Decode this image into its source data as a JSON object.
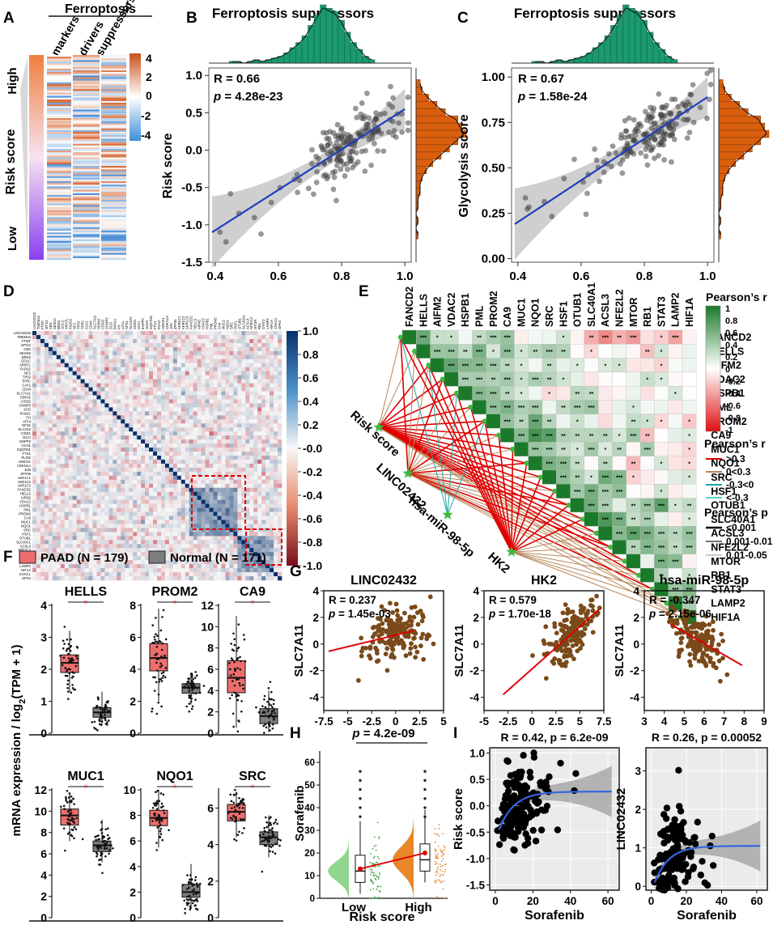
{
  "panel_letters": {
    "a": "A",
    "b": "B",
    "c": "C",
    "d": "D",
    "e": "E",
    "f": "F",
    "g": "G",
    "h": "H",
    "i": "I"
  },
  "colors": {
    "green": "#1a9a6e",
    "orange": "#d95f0e",
    "blue": "#1f3fbf",
    "red": "#e00000",
    "tan": "#b8865a",
    "teal": "#22a4a4",
    "box_red": "#ee6e6e",
    "box_gray": "#7d7d7d",
    "brown": "#7a4a1a"
  },
  "panel_a": {
    "title": "Ferroptosis",
    "columns": [
      "markers",
      "drivers",
      "suppressors"
    ],
    "ylabel": "Risk score",
    "high": "High",
    "low": "Low",
    "scale_ticks": [
      "4",
      "2",
      "0",
      "-2",
      "-4"
    ]
  },
  "chart_data": [
    {
      "id": "B",
      "type": "scatter",
      "title": "Ferroptosis suppressors",
      "ylabel": "Risk score",
      "xlabel": "",
      "xlim": [
        0.38,
        1.02
      ],
      "ylim": [
        -1.5,
        1.1
      ],
      "xticks": [
        "0.4",
        "0.6",
        "0.8",
        "1.0"
      ],
      "yticks": [
        "1.0",
        "0.5",
        "0.0",
        "-0.5",
        "-1.0",
        "-1.5"
      ],
      "annotation_r": "R = 0.66",
      "annotation_p_label": "p",
      "annotation_p": " = 4.28e-23",
      "fit": {
        "x0": 0.39,
        "y0": -1.1,
        "x1": 1.0,
        "y1": 0.55
      }
    },
    {
      "id": "C",
      "type": "scatter",
      "title": "Ferroptosis suppressors",
      "ylabel": "Glycolysis score",
      "xlabel": "",
      "xlim": [
        0.38,
        1.02
      ],
      "ylim": [
        -0.02,
        1.05
      ],
      "xticks": [
        "0.4",
        "0.6",
        "0.8",
        "1.0"
      ],
      "yticks": [
        "1.00",
        "0.75",
        "0.50",
        "0.25",
        "0.00"
      ],
      "annotation_r": "R = 0.67",
      "annotation_p_label": "p",
      "annotation_p": " = 1.58e-24",
      "fit": {
        "x0": 0.39,
        "y0": 0.19,
        "x1": 1.0,
        "y1": 0.89
      }
    },
    {
      "id": "D",
      "type": "heatmap",
      "colorbar_ticks": [
        "1.0",
        "0.8",
        "0.6",
        "0.4",
        "0.2",
        "-0.0",
        "-0.2",
        "-0.4",
        "-0.6",
        "-0.8",
        "-1.0"
      ],
      "genes": [
        "LINC02432",
        "TMEM44",
        "FTMT",
        "MT1G",
        "CBS",
        "SESN2",
        "BRD4",
        "GOLC",
        "ARNTL",
        "FADS2",
        "NF2",
        "TP53",
        "TFRC",
        "CAV1",
        "CD44",
        "SLC7A11",
        "HSPA5",
        "CISD2",
        "CHMP5",
        "SCD",
        "PANX1",
        "FH",
        "ATF4",
        "NFS1",
        "SLC3A2",
        "CISD1",
        "ISCU",
        "ENPP2",
        "GCH1",
        "SQSTM1",
        "FTH1",
        "PLIN2",
        "HMOX1",
        "CDKN1A",
        "JUN",
        "ZFP36",
        "AKR1C1",
        "AKR1C2",
        "AKR1C3",
        "FANCD2",
        "HELLS",
        "AIFM2",
        "VDAC2",
        "HSPB1",
        "PML",
        "PROM2",
        "CA9",
        "MUC1",
        "NQO1",
        "SRC",
        "HSF1",
        "OTUB1",
        "SLC40A1",
        "ACSL3",
        "NFE2L2",
        "MTOR",
        "RB1",
        "STAT3",
        "LAMP2",
        "HIF1A",
        "CHAC1",
        "GPX4"
      ]
    },
    {
      "id": "G1",
      "type": "scatter",
      "title": "LINC02432",
      "ylabel": "SLC7A11",
      "xlim": [
        -7.5,
        5
      ],
      "ylim": [
        -5,
        4
      ],
      "xticks": [
        "-7.5",
        "-5",
        "-2.5",
        "0",
        "2.5",
        "5"
      ],
      "yticks": [
        "4",
        "2",
        "0",
        "-2",
        "-4"
      ],
      "annotation_r": "R = 0.237",
      "annotation_p_label": "p",
      "annotation_p": " = 1.45e-03",
      "fit": {
        "x0": -7.0,
        "y0": -0.55,
        "x1": 1.9,
        "y1": 1.0
      }
    },
    {
      "id": "G2",
      "type": "scatter",
      "title": "HK2",
      "ylabel": "SLC7A11",
      "xlim": [
        -5,
        7.5
      ],
      "ylim": [
        -5,
        4
      ],
      "xticks": [
        "-5",
        "-2.5",
        "0",
        "2.5",
        "5",
        "7.5"
      ],
      "yticks": [
        "4",
        "2",
        "0",
        "-2",
        "-4"
      ],
      "annotation_r": "R = 0.579",
      "annotation_p_label": "p",
      "annotation_p": " = 1.70e-18",
      "fit": {
        "x0": -3.0,
        "y0": -3.8,
        "x1": 7.0,
        "y1": 2.6
      }
    },
    {
      "id": "G3",
      "type": "scatter",
      "title": "hsa-miR-98-5p",
      "ylabel": "SLC7A11",
      "xlim": [
        3,
        9
      ],
      "ylim": [
        -5,
        4
      ],
      "xticks": [
        "3",
        "4",
        "5",
        "6",
        "7",
        "8",
        "9"
      ],
      "yticks": [
        "4",
        "2",
        "0",
        "-2",
        "-4"
      ],
      "annotation_r": "R = -0.347",
      "annotation_p_label": "p",
      "annotation_p": " = 2.15e-06",
      "fit": {
        "x0": 4.3,
        "y0": 1.5,
        "x1": 7.9,
        "y1": -1.6
      }
    },
    {
      "id": "H",
      "type": "violin",
      "ylabel": "Sorafenib",
      "xlabel": "Risk score",
      "categories": [
        "Low",
        "High"
      ],
      "ylim": [
        0,
        65
      ],
      "yticks": [
        "60",
        "50",
        "40",
        "30",
        "20",
        "10",
        "0"
      ],
      "medians": [
        12,
        17
      ],
      "means": [
        13,
        20
      ],
      "annotation_p_label": "p",
      "annotation_p": " = 4.2e-09"
    },
    {
      "id": "I1",
      "type": "scatter",
      "title": "R = 0.42, p = 6.2e-09",
      "ylabel": "Risk score",
      "xlabel": "Sorafenib",
      "xlim": [
        -3,
        66
      ],
      "ylim": [
        -1.6,
        1.1
      ],
      "xticks": [
        "0",
        "20",
        "40",
        "60"
      ],
      "yticks": [
        "1.0",
        "0.5",
        "0.0",
        "-0.5",
        "-1.0",
        "-1.5"
      ],
      "fit": {
        "x0": 2,
        "y0": -0.45,
        "x1": 62,
        "y1": 0.27
      }
    },
    {
      "id": "I2",
      "type": "scatter",
      "title": "R = 0.26, p = 0.00052",
      "ylabel": "LINC02432",
      "xlabel": "Sorafenib",
      "xlim": [
        -3,
        66
      ],
      "ylim": [
        -0.1,
        3.6
      ],
      "xticks": [
        "0",
        "20",
        "40",
        "60"
      ],
      "yticks": [
        "3",
        "2",
        "1",
        "0"
      ],
      "fit": {
        "x0": 2,
        "y0": 0.1,
        "x1": 62,
        "y1": 1.05
      }
    },
    {
      "id": "F",
      "type": "box",
      "legend": [
        "PAAD (N = 179)",
        "Normal (N = 171)"
      ],
      "ylabel": "mRNA expression / log",
      "ylabel_sub": "2",
      "ylabel_tail": "(TPM + 1)",
      "genes": [
        {
          "name": "HELLS",
          "ylim": [
            0,
            4
          ],
          "yticks": [
            "4",
            "3",
            "2",
            "1",
            "0"
          ],
          "paad": {
            "q1": 1.9,
            "med": 2.2,
            "q3": 2.45,
            "lo": 1.3,
            "hi": 3.2
          },
          "norm": {
            "q1": 0.5,
            "med": 0.65,
            "q3": 0.8,
            "lo": 0.25,
            "hi": 1.3
          }
        },
        {
          "name": "PROM2",
          "ylim": [
            0,
            8
          ],
          "yticks": [
            "8",
            "6",
            "4",
            "2",
            "0"
          ],
          "paad": {
            "q1": 3.9,
            "med": 4.7,
            "q3": 5.6,
            "lo": 2.0,
            "hi": 7.8
          },
          "norm": {
            "q1": 2.5,
            "med": 2.85,
            "q3": 3.1,
            "lo": 1.8,
            "hi": 3.8
          }
        },
        {
          "name": "CA9",
          "ylim": [
            0,
            12
          ],
          "yticks": [
            "12",
            "10",
            "8",
            "6",
            "4",
            "2",
            "0"
          ],
          "paad": {
            "q1": 3.8,
            "med": 5.2,
            "q3": 6.8,
            "lo": 0.5,
            "hi": 11
          },
          "norm": {
            "q1": 0.9,
            "med": 1.6,
            "q3": 2.3,
            "lo": 0.1,
            "hi": 4.0
          }
        },
        {
          "name": "MUC1",
          "ylim": [
            0,
            12
          ],
          "yticks": [
            "12",
            "10",
            "8",
            "6",
            "4",
            "2",
            "0"
          ],
          "paad": {
            "q1": 8.7,
            "med": 9.6,
            "q3": 10.2,
            "lo": 7.2,
            "hi": 11.7
          },
          "norm": {
            "q1": 6.2,
            "med": 6.8,
            "q3": 7.2,
            "lo": 5.2,
            "hi": 9.2
          }
        },
        {
          "name": "NQO1",
          "ylim": [
            0,
            10
          ],
          "yticks": [
            "10",
            "8",
            "6",
            "4",
            "2",
            "0"
          ],
          "paad": {
            "q1": 7.2,
            "med": 7.8,
            "q3": 8.4,
            "lo": 5.5,
            "hi": 10
          },
          "norm": {
            "q1": 1.6,
            "med": 2.0,
            "q3": 2.6,
            "lo": 0.8,
            "hi": 4.2
          }
        },
        {
          "name": "SRC",
          "ylim": [
            0,
            7
          ],
          "yticks": [
            "6",
            "4",
            "2",
            "0"
          ],
          "paad": {
            "q1": 5.3,
            "med": 5.8,
            "q3": 6.2,
            "lo": 4.4,
            "hi": 6.9
          },
          "norm": {
            "q1": 4.0,
            "med": 4.4,
            "q3": 4.7,
            "lo": 3.3,
            "hi": 5.6
          }
        }
      ]
    },
    {
      "id": "E",
      "type": "correlation-network",
      "genes": [
        "FANCD2",
        "HELLS",
        "AIFM2",
        "VDAC2",
        "HSPB1",
        "PML",
        "PROM2",
        "CA9",
        "MUC1",
        "NQO1",
        "SRC",
        "HSF1",
        "OTUB1",
        "SLC40A1",
        "ACSL3",
        "NFE2L2",
        "MTOR",
        "RB1",
        "STAT3",
        "LAMP2",
        "HIF1A"
      ],
      "nodes": [
        "Risk score",
        "LINC02432",
        "hsa-miR-98-5p",
        "HK2"
      ],
      "legend_r_title": "Pearson’s r",
      "legend_r_ticks": [
        "1",
        "0.8",
        "0.6",
        "0.4",
        "0.2",
        "0",
        "-0.2",
        "-0.4",
        "-0.6",
        "-0.8",
        "-1"
      ],
      "legend_line_title": "Pearson’s r",
      "legend_line_items": [
        ">0.3",
        "0<0.3",
        "-0.3<0",
        "<-0.3"
      ],
      "legend_p_title": "Pearson’s p",
      "legend_p_items": [
        "<0.001",
        "0.001-0.01",
        "0.01-0.05"
      ]
    }
  ]
}
